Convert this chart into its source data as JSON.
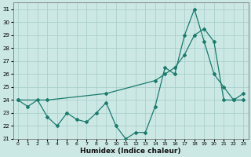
{
  "xlabel": "Humidex (Indice chaleur)",
  "ylabel": "",
  "bg_color": "#cce8e4",
  "line_color": "#1a7a6e",
  "grid_color": "#aacfcb",
  "xlim": [
    0,
    23
  ],
  "ylim": [
    21,
    31.5
  ],
  "xtick_labels": [
    "0",
    "1",
    "2",
    "3",
    "4",
    "5",
    "6",
    "7",
    "8",
    "9",
    "10",
    "11",
    "12",
    "13",
    "14",
    "15",
    "16",
    "17",
    "18",
    "19",
    "20",
    "21",
    "22",
    "23"
  ],
  "xticks": [
    0,
    1,
    2,
    3,
    4,
    5,
    6,
    7,
    8,
    9,
    10,
    11,
    12,
    13,
    14,
    15,
    16,
    17,
    18,
    19,
    20,
    21,
    22,
    23
  ],
  "yticks": [
    21,
    22,
    23,
    24,
    25,
    26,
    27,
    28,
    29,
    30,
    31
  ],
  "line1_x": [
    0,
    1,
    2,
    3,
    4,
    5,
    6,
    7,
    8,
    9,
    10,
    11,
    12,
    13,
    14,
    15,
    16,
    17,
    18,
    19,
    20,
    21,
    22,
    23
  ],
  "line1_y": [
    24.0,
    23.5,
    24.0,
    22.7,
    22.0,
    23.0,
    22.5,
    22.3,
    23.0,
    23.8,
    22.0,
    21.0,
    21.5,
    21.5,
    23.5,
    26.5,
    26.0,
    29.0,
    31.0,
    28.5,
    26.0,
    25.0,
    24.0,
    24.5
  ],
  "line2_x": [
    0,
    3,
    9,
    14,
    15,
    16,
    17,
    18,
    19,
    20,
    21,
    22,
    23
  ],
  "line2_y": [
    24.0,
    24.0,
    24.5,
    25.5,
    26.0,
    26.5,
    27.5,
    29.0,
    29.5,
    28.5,
    24.0,
    24.0,
    24.0
  ]
}
